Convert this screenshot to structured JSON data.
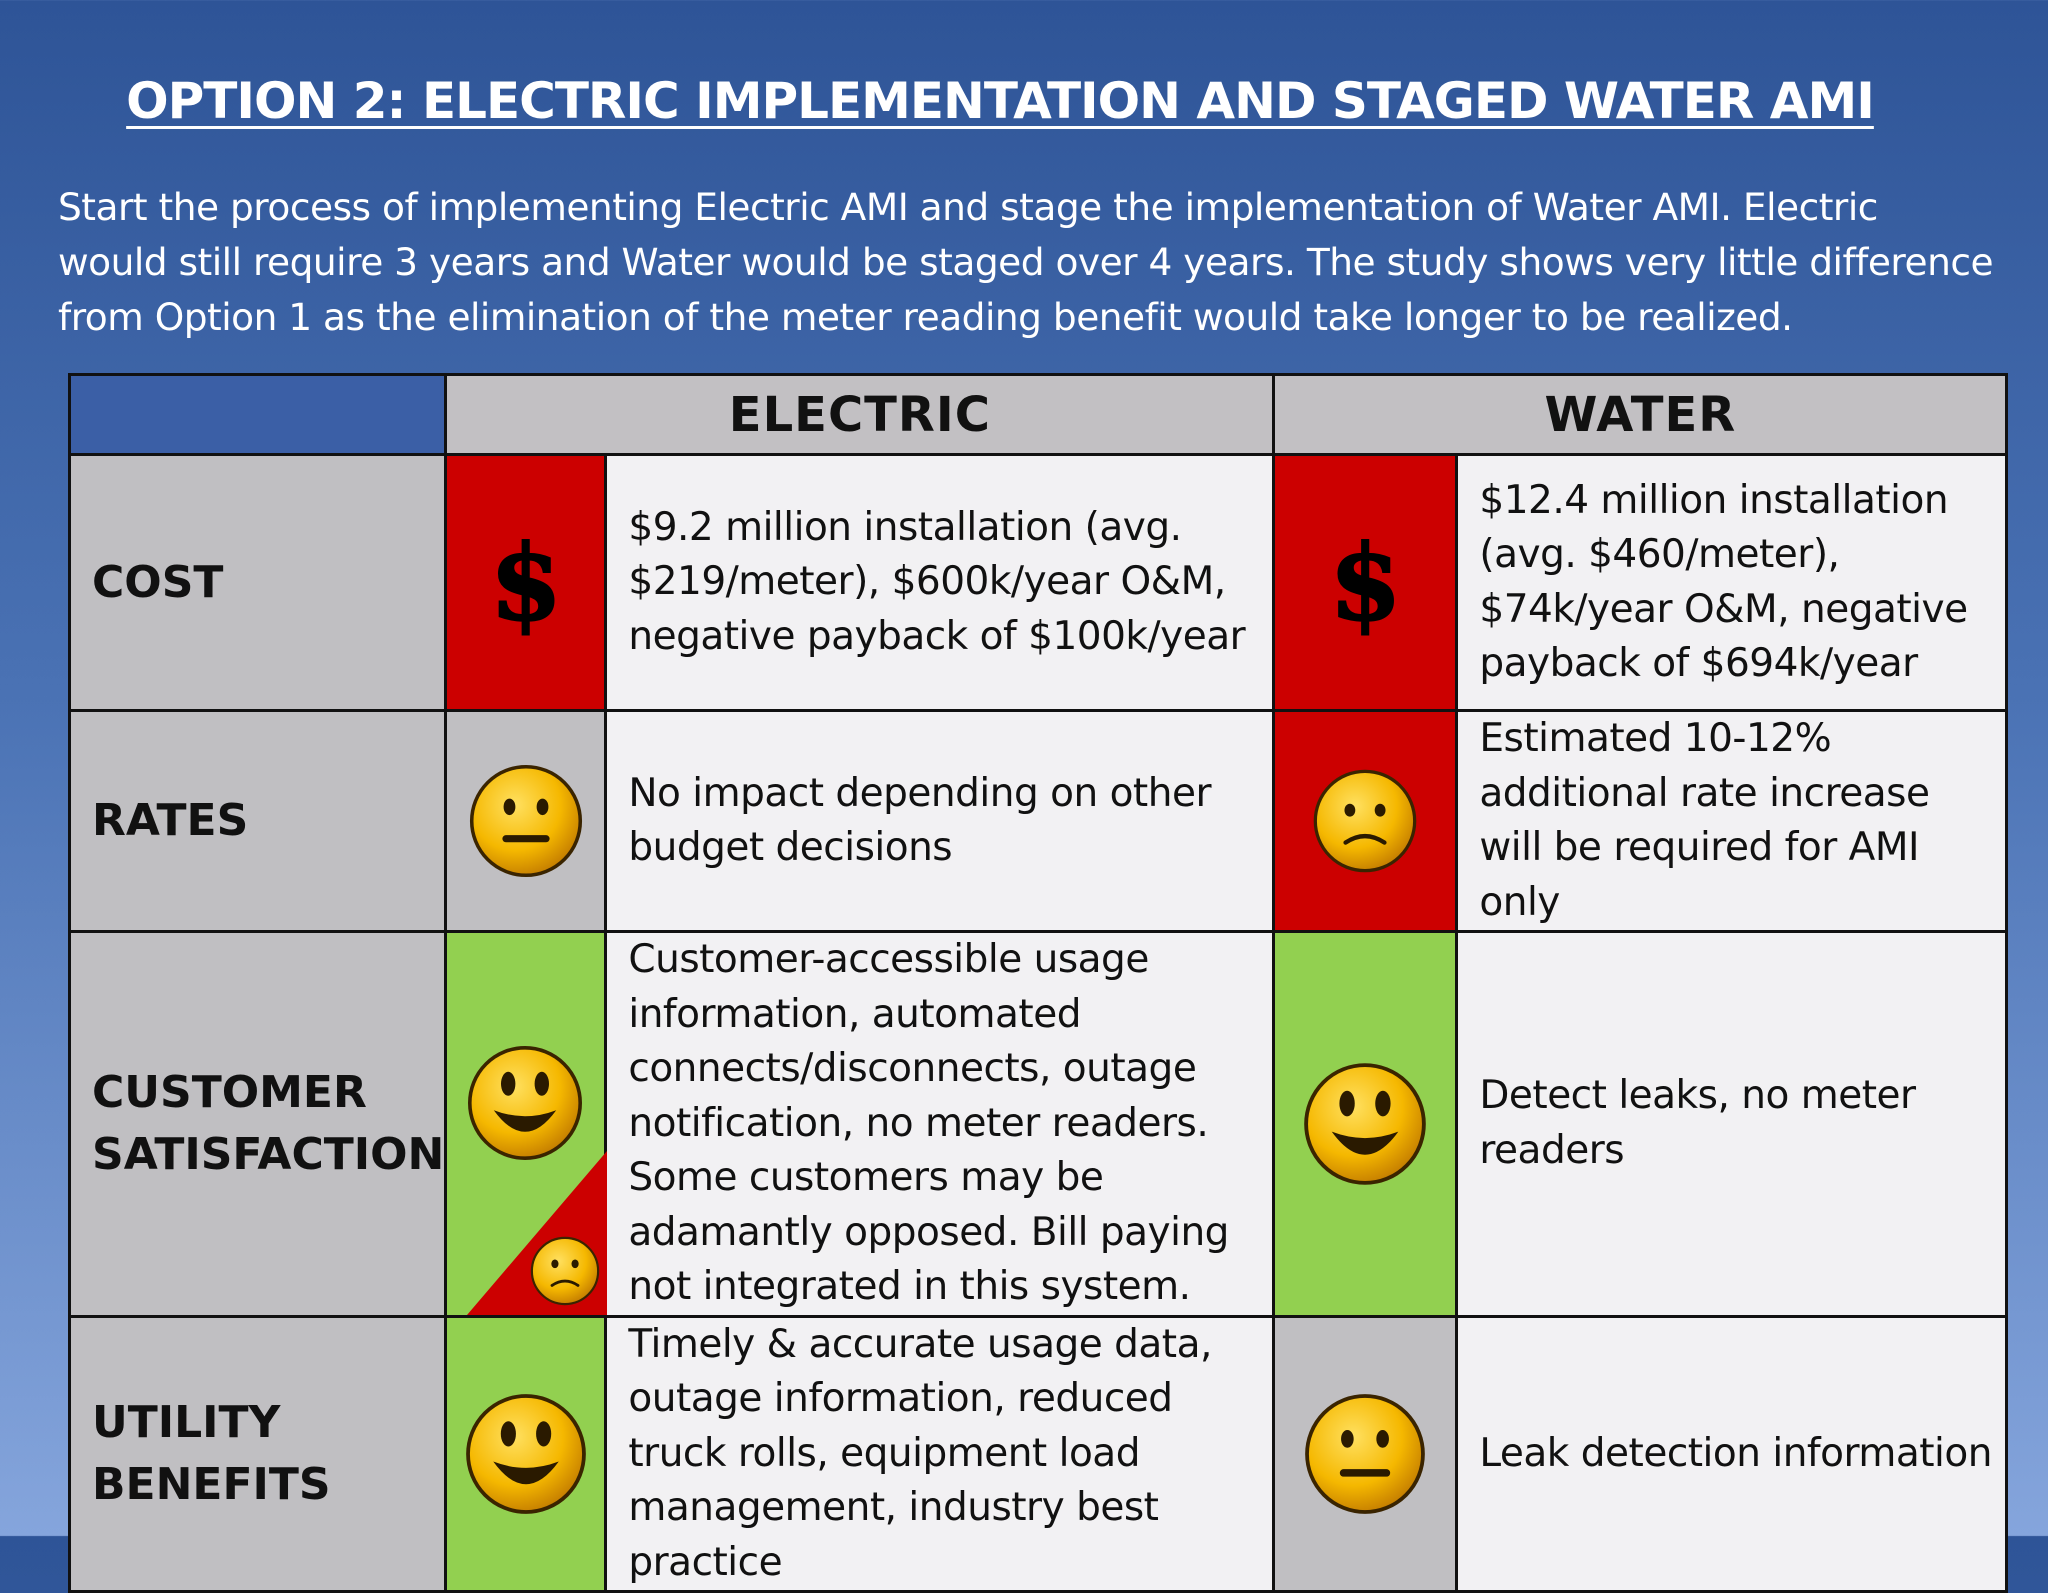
{
  "slide": {
    "title": "OPTION 2: ELECTRIC IMPLEMENTATION AND STAGED WATER AMI",
    "intro": [
      "Start the process of implementing Electric AMI and stage the implementation of Water AMI.  Electric",
      "would still require 3 years and Water would be staged over 4 years.  The study shows very little difference",
      "from Option 1 as the elimination of the meter reading benefit would take longer to be realized."
    ]
  },
  "table": {
    "columns": [
      "ELECTRIC",
      "WATER"
    ],
    "rows": [
      {
        "label_lines": [
          "COST"
        ],
        "electric": {
          "status": "red",
          "icon": "dollar-sign-icon",
          "symbol": "$",
          "text": "$9.2 million installation (avg. $219/meter), $600k/year O&M, negative payback of $100k/year"
        },
        "water": {
          "status": "red",
          "icon": "dollar-sign-icon",
          "symbol": "$",
          "text": "$12.4 million installation (avg. $460/meter), $74k/year O&M, negative payback of $694k/year"
        }
      },
      {
        "label_lines": [
          "RATES"
        ],
        "electric": {
          "status": "gray",
          "icon": "neutral-face-icon",
          "text": "No impact depending on other budget decisions"
        },
        "water": {
          "status": "red",
          "icon": "sad-face-icon",
          "text": "Estimated 10-12% additional rate increase will be required for AMI only"
        }
      },
      {
        "label_lines": [
          "CUSTOMER",
          "SATISFACTION"
        ],
        "electric": {
          "status": "green",
          "icon": "happy-face-icon",
          "secondary_status": "red",
          "secondary_icon": "sad-face-icon",
          "text": "Customer-accessible usage information, automated connects/disconnects, outage notification, no meter readers. Some customers may be adamantly opposed. Bill paying not integrated in this system."
        },
        "water": {
          "status": "green",
          "icon": "happy-face-icon",
          "text": "Detect leaks, no meter readers"
        }
      },
      {
        "label_lines": [
          "UTILITY",
          "BENEFITS"
        ],
        "electric": {
          "status": "green",
          "icon": "happy-face-icon",
          "text": "Timely & accurate usage data, outage information, reduced truck rolls, equipment load management, industry best practice"
        },
        "water": {
          "status": "gray",
          "icon": "neutral-face-icon",
          "text": "Leak detection information"
        }
      }
    ]
  },
  "colors": {
    "red": "#cc0000",
    "green": "#92d050",
    "gray": "#c0bfc2",
    "header_gray": "#c2c0c3",
    "cell_light": "#f2f1f3",
    "face_yellow": "#f5b800"
  }
}
